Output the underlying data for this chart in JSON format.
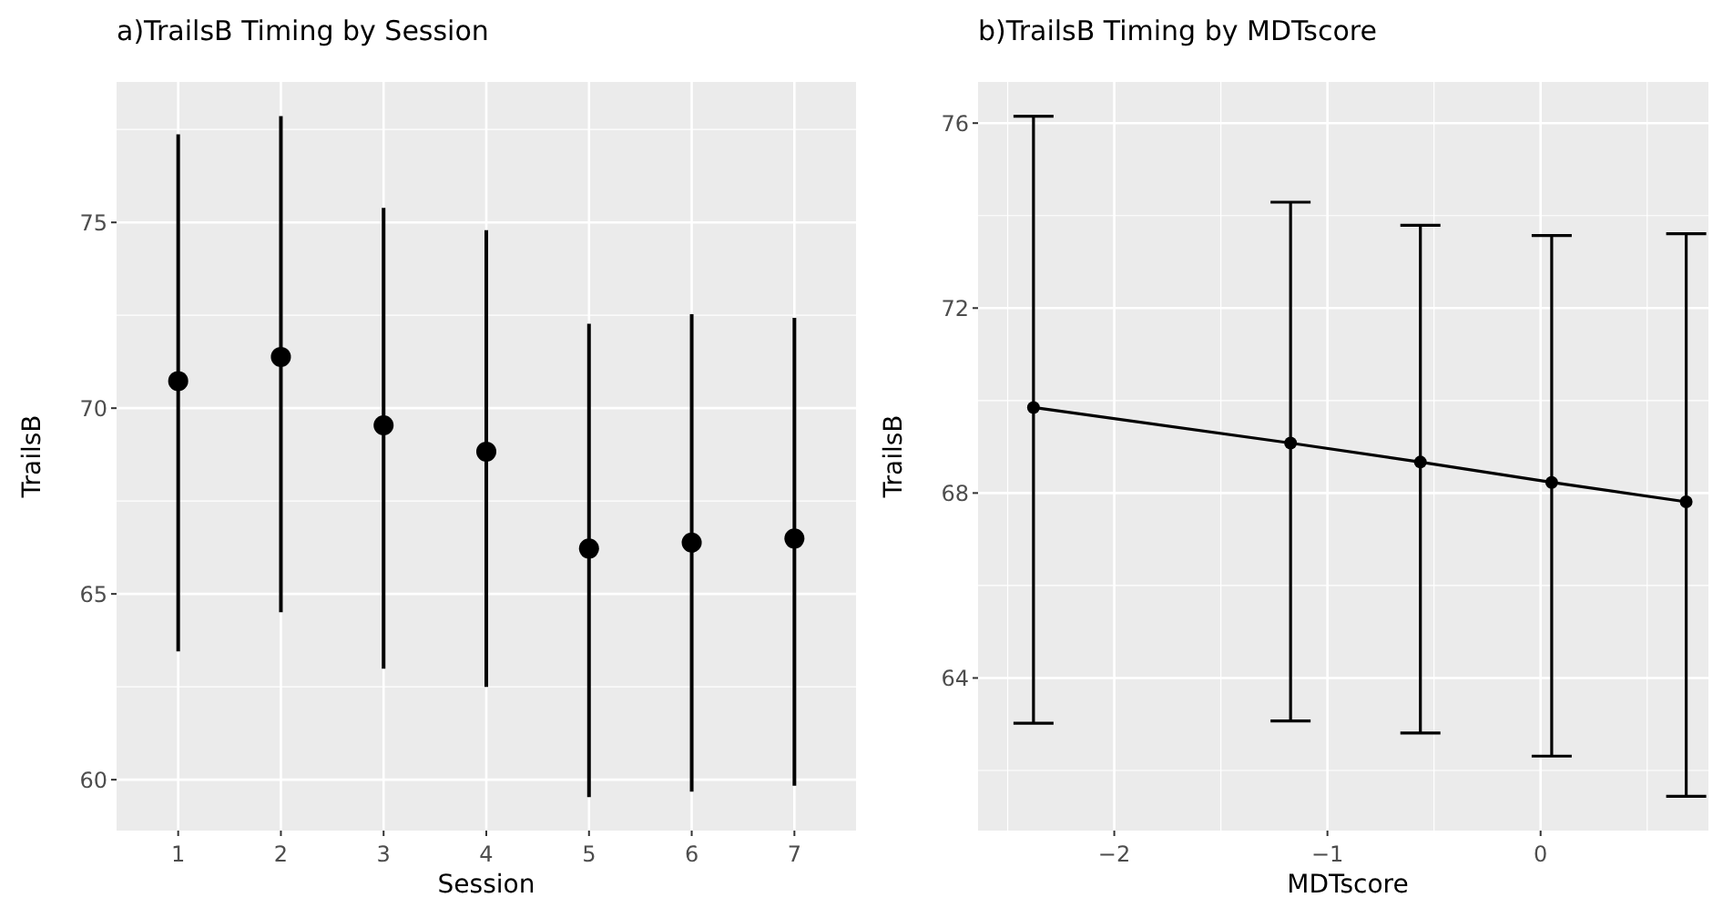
{
  "chart_data": [
    {
      "type": "scatter",
      "title": "a)TrailsB Timing by Session",
      "xlabel": "Session",
      "ylabel": "TrailsB",
      "categories": [
        "1",
        "2",
        "3",
        "4",
        "5",
        "6",
        "7"
      ],
      "series": [
        {
          "color": "#000000",
          "values": [
            70.73,
            71.38,
            69.54,
            68.83,
            66.22,
            66.38,
            66.49
          ],
          "errors": [
            [
              63.45,
              77.37
            ],
            [
              64.51,
              77.86
            ],
            [
              62.99,
              75.39
            ],
            [
              62.5,
              74.79
            ],
            [
              59.53,
              72.27
            ],
            [
              59.68,
              72.53
            ],
            [
              59.84,
              72.43
            ]
          ]
        }
      ],
      "ylim": [
        58.63,
        78.78
      ],
      "yticks": [
        60,
        65,
        70,
        75
      ],
      "grid": true,
      "marker": "circle"
    },
    {
      "type": "line",
      "title": "b)TrailsB Timing by MDTscore",
      "xlabel": "MDTscore",
      "ylabel": "TrailsB",
      "x": [
        -2.379,
        -1.173,
        -0.564,
        0.052,
        0.683
      ],
      "series": [
        {
          "color": "#000000",
          "values": [
            69.85,
            69.08,
            68.67,
            68.23,
            67.81
          ],
          "errors": [
            [
              63.02,
              76.15
            ],
            [
              63.07,
              74.29
            ],
            [
              62.81,
              73.79
            ],
            [
              62.31,
              73.57
            ],
            [
              61.44,
              73.61
            ]
          ]
        }
      ],
      "xlim": [
        -2.639,
        0.83
      ],
      "xticks": [
        {
          "value": -2,
          "label": "−2"
        },
        {
          "value": -1,
          "label": "−1"
        },
        0
      ],
      "ylim": [
        60.7,
        76.89
      ],
      "yticks": [
        64,
        68,
        72,
        76
      ],
      "grid": true,
      "marker": "circle",
      "line_style": "solid"
    }
  ]
}
